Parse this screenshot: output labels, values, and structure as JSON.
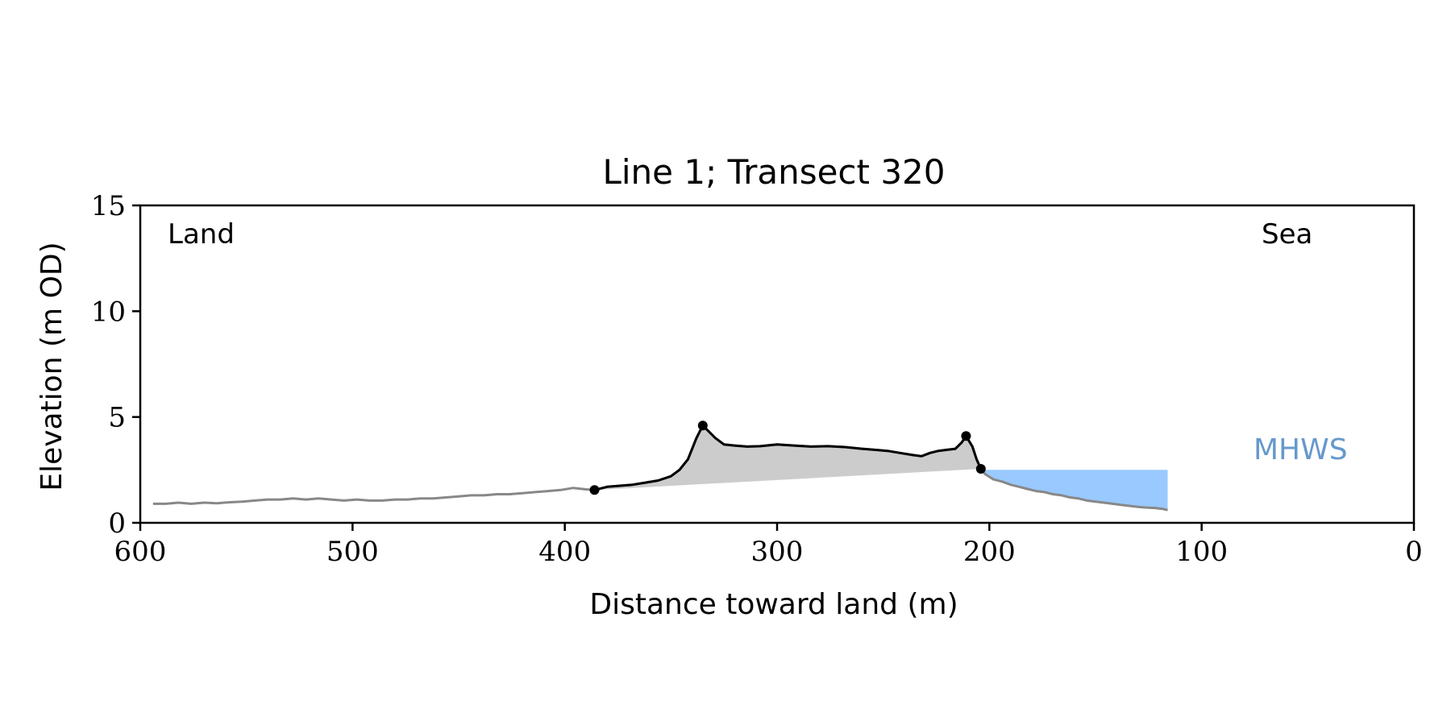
{
  "chart_data": {
    "type": "line",
    "title": "Line 1; Transect 320",
    "xlabel": "Distance toward land (m)",
    "ylabel": "Elevation (m OD)",
    "xlim": [
      600,
      0
    ],
    "ylim": [
      0,
      15
    ],
    "xticks": [
      600,
      500,
      400,
      300,
      200,
      100,
      0
    ],
    "yticks": [
      0,
      5,
      10,
      15
    ],
    "grid": false,
    "annotations": {
      "land": "Land",
      "sea": "Sea",
      "mhws": "MHWS"
    },
    "colors": {
      "profile": "#888888",
      "dune": "#000000",
      "dune_fill": "#cccccc",
      "water": "#99c9ff",
      "mhws_text": "#6699cc"
    },
    "mhws_level": 2.5,
    "series": [
      {
        "role": "full-profile",
        "x": [
          594,
          588,
          582,
          576,
          570,
          564,
          558,
          552,
          546,
          540,
          534,
          528,
          522,
          516,
          510,
          504,
          498,
          492,
          486,
          480,
          474,
          468,
          462,
          456,
          450,
          444,
          438,
          432,
          426,
          420,
          414,
          408,
          402,
          396,
          390,
          386,
          380,
          374,
          368,
          362,
          356,
          350,
          346,
          342,
          338,
          335,
          332,
          329,
          325,
          320,
          314,
          308,
          300,
          292,
          284,
          276,
          268,
          260,
          254,
          248,
          242,
          236,
          232,
          228,
          224,
          220,
          216,
          213,
          211,
          208,
          206,
          204,
          202,
          198,
          194,
          190,
          186,
          182,
          178,
          174,
          170,
          166,
          162,
          158,
          154,
          150,
          146,
          142,
          138,
          134,
          130,
          126,
          122,
          118,
          116
        ],
        "y": [
          0.9,
          0.9,
          0.95,
          0.9,
          0.95,
          0.92,
          0.97,
          1.0,
          1.05,
          1.1,
          1.1,
          1.15,
          1.1,
          1.15,
          1.1,
          1.05,
          1.1,
          1.05,
          1.05,
          1.1,
          1.1,
          1.15,
          1.15,
          1.2,
          1.25,
          1.3,
          1.3,
          1.35,
          1.35,
          1.4,
          1.45,
          1.5,
          1.55,
          1.65,
          1.58,
          1.55,
          1.7,
          1.75,
          1.8,
          1.9,
          2.0,
          2.2,
          2.5,
          3.0,
          4.0,
          4.6,
          4.3,
          4.0,
          3.7,
          3.65,
          3.6,
          3.62,
          3.7,
          3.65,
          3.6,
          3.62,
          3.58,
          3.5,
          3.45,
          3.4,
          3.3,
          3.2,
          3.15,
          3.3,
          3.4,
          3.45,
          3.5,
          3.8,
          4.1,
          3.6,
          3.0,
          2.55,
          2.3,
          2.05,
          1.95,
          1.8,
          1.7,
          1.6,
          1.5,
          1.45,
          1.35,
          1.3,
          1.2,
          1.15,
          1.05,
          1.0,
          0.95,
          0.9,
          0.85,
          0.8,
          0.75,
          0.72,
          0.7,
          0.65,
          0.6
        ]
      },
      {
        "role": "dune-crest",
        "x": [
          386,
          380,
          374,
          368,
          362,
          356,
          350,
          346,
          342,
          338,
          335,
          332,
          329,
          325,
          320,
          314,
          308,
          300,
          292,
          284,
          276,
          268,
          260,
          254,
          248,
          242,
          236,
          232,
          228,
          224,
          220,
          216,
          213,
          211,
          208,
          206,
          204
        ],
        "y": [
          1.55,
          1.7,
          1.75,
          1.8,
          1.9,
          2.0,
          2.2,
          2.5,
          3.0,
          4.0,
          4.6,
          4.3,
          4.0,
          3.7,
          3.65,
          3.6,
          3.62,
          3.7,
          3.65,
          3.6,
          3.62,
          3.58,
          3.5,
          3.45,
          3.4,
          3.3,
          3.2,
          3.15,
          3.3,
          3.4,
          3.45,
          3.5,
          3.8,
          4.1,
          3.6,
          3.0,
          2.55
        ]
      }
    ],
    "markers": {
      "x": [
        386,
        335,
        211,
        204
      ],
      "y": [
        1.55,
        4.6,
        4.1,
        2.55
      ]
    },
    "water_region": {
      "x": [
        204,
        116
      ],
      "level": 2.5
    }
  }
}
